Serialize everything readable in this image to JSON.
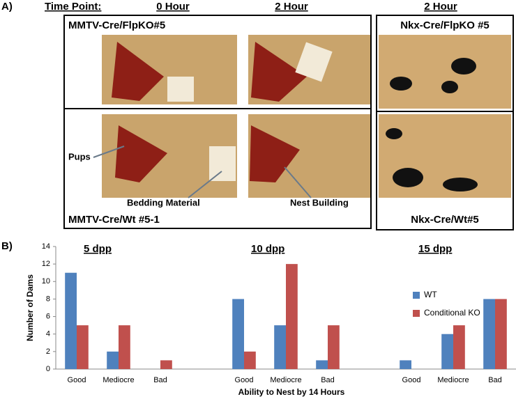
{
  "panel_a": {
    "label": "A)",
    "time_point": "Time Point:",
    "columns": [
      "0 Hour",
      "2 Hour",
      "2 Hour"
    ],
    "groups": [
      "MMTV-Cre/FlpKO#5",
      "MMTV-Cre/Wt #5-1",
      "Nkx-Cre/FlpKO #5",
      "Nkx-Cre/Wt#5"
    ],
    "callouts": [
      "Pups",
      "Bedding Material",
      "Nest Building"
    ]
  },
  "chart_data": {
    "type": "bar",
    "panel_label": "B)",
    "x_label": "Ability to Nest by 14 Hours",
    "y_label": "Number of Dams",
    "annotations": [
      "5 dpp",
      "10 dpp",
      "15 dpp"
    ],
    "categories": [
      "Good",
      "Mediocre",
      "Bad",
      null,
      "Good",
      "Mediocre",
      "Bad",
      null,
      "Good",
      "Mediocre",
      "Bad"
    ],
    "series": [
      {
        "name": "WT",
        "color": "#4f81bd",
        "values": [
          11,
          2,
          0,
          null,
          8,
          5,
          1,
          null,
          1,
          4,
          8
        ]
      },
      {
        "name": "Conditional KO",
        "color": "#c0504d",
        "values": [
          5,
          5,
          1,
          null,
          2,
          12,
          5,
          null,
          0,
          5,
          8
        ]
      }
    ],
    "ylim": [
      0,
      14
    ],
    "yticks": [
      0,
      2,
      4,
      6,
      8,
      10,
      12,
      14
    ],
    "grid": false,
    "legend": "right"
  }
}
